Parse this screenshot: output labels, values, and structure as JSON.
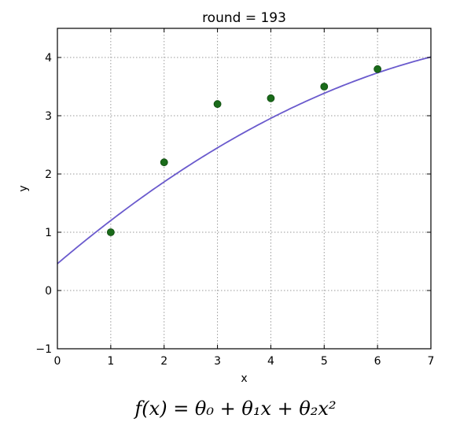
{
  "chart_data": {
    "type": "scatter",
    "title": "round = 193",
    "xlabel": "x",
    "ylabel": "y",
    "xlim": [
      0,
      7
    ],
    "ylim": [
      -1,
      4.5
    ],
    "xticks": [
      0,
      1,
      2,
      3,
      4,
      5,
      6,
      7
    ],
    "xtick_labels": [
      "0",
      "1",
      "2",
      "3",
      "4",
      "5",
      "6",
      "7"
    ],
    "yticks": [
      -1,
      0,
      1,
      2,
      3,
      4
    ],
    "ytick_labels": [
      "−1",
      "0",
      "1",
      "2",
      "3",
      "4"
    ],
    "grid": true,
    "series": [
      {
        "kind": "points",
        "color": "#1a6b1a",
        "x": [
          1,
          2,
          3,
          4,
          5,
          6
        ],
        "y": [
          1.0,
          2.2,
          3.2,
          3.3,
          3.5,
          3.8
        ]
      },
      {
        "kind": "curve",
        "color": "#6a5acd",
        "function": "theta0 + theta1*x + theta2*x^2",
        "coefficients": {
          "theta0": 0.46,
          "theta1": 0.78,
          "theta2": -0.039
        },
        "x_range": [
          0,
          7
        ]
      }
    ]
  },
  "formula": "f(x) = θ₀ + θ₁x + θ₂x²"
}
